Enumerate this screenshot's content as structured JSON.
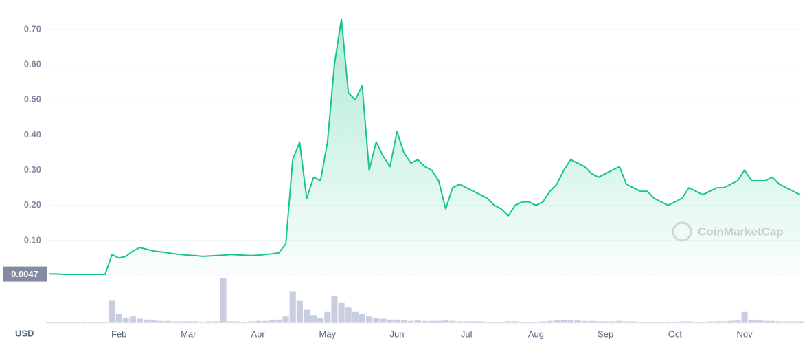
{
  "chart_data": {
    "type": "line",
    "watermark": "CoinMarketCap",
    "currency": "USD",
    "categories": [
      null,
      null,
      null,
      null,
      null,
      null,
      null,
      null,
      null,
      null,
      "Feb",
      null,
      null,
      null,
      null,
      null,
      null,
      null,
      null,
      null,
      "Mar",
      null,
      null,
      null,
      null,
      null,
      null,
      null,
      null,
      null,
      "Apr",
      null,
      null,
      null,
      null,
      null,
      null,
      null,
      null,
      null,
      "May",
      null,
      null,
      null,
      null,
      null,
      null,
      null,
      null,
      null,
      "Jun",
      null,
      null,
      null,
      null,
      null,
      null,
      null,
      null,
      null,
      "Jul",
      null,
      null,
      null,
      null,
      null,
      null,
      null,
      null,
      null,
      "Aug",
      null,
      null,
      null,
      null,
      null,
      null,
      null,
      null,
      null,
      "Sep",
      null,
      null,
      null,
      null,
      null,
      null,
      null,
      null,
      null,
      "Oct",
      null,
      null,
      null,
      null,
      null,
      null,
      null,
      null,
      null,
      "Nov",
      null,
      null,
      null,
      null,
      null,
      null,
      null,
      null
    ],
    "values": [
      0.005,
      0.005,
      0.004,
      0.004,
      0.004,
      0.004,
      0.004,
      0.004,
      0.004,
      0.06,
      0.05,
      0.055,
      0.07,
      0.08,
      0.075,
      0.07,
      0.068,
      0.065,
      0.062,
      0.06,
      0.058,
      0.057,
      0.055,
      0.056,
      0.057,
      0.058,
      0.06,
      0.059,
      0.058,
      0.057,
      0.058,
      0.06,
      0.062,
      0.065,
      0.09,
      0.33,
      0.38,
      0.22,
      0.28,
      0.27,
      0.38,
      0.6,
      0.73,
      0.52,
      0.5,
      0.54,
      0.3,
      0.38,
      0.34,
      0.31,
      0.41,
      0.35,
      0.32,
      0.33,
      0.31,
      0.3,
      0.27,
      0.19,
      0.25,
      0.26,
      0.25,
      0.24,
      0.23,
      0.22,
      0.2,
      0.19,
      0.17,
      0.2,
      0.21,
      0.21,
      0.2,
      0.21,
      0.24,
      0.26,
      0.3,
      0.33,
      0.32,
      0.31,
      0.29,
      0.28,
      0.29,
      0.3,
      0.31,
      0.26,
      0.25,
      0.24,
      0.24,
      0.22,
      0.21,
      0.2,
      0.21,
      0.22,
      0.25,
      0.24,
      0.23,
      0.24,
      0.25,
      0.25,
      0.26,
      0.27,
      0.3,
      0.27,
      0.27,
      0.27,
      0.28,
      0.26,
      0.25,
      0.24,
      0.23
    ],
    "color": "#16c784",
    "ylim": [
      0,
      0.78
    ],
    "yticks": [
      {
        "value": 0.1,
        "label": "0.10"
      },
      {
        "value": 0.2,
        "label": "0.20"
      },
      {
        "value": 0.3,
        "label": "0.30"
      },
      {
        "value": 0.4,
        "label": "0.40"
      },
      {
        "value": 0.5,
        "label": "0.50"
      },
      {
        "value": 0.6,
        "label": "0.60"
      },
      {
        "value": 0.7,
        "label": "0.70"
      }
    ],
    "grid": true,
    "baseline": 0.0047,
    "volume": {
      "color": "#c9cde0",
      "ylim": [
        0,
        100
      ],
      "values": [
        3,
        3,
        2,
        2,
        2,
        2,
        2,
        2,
        3,
        50,
        20,
        12,
        15,
        10,
        8,
        6,
        5,
        5,
        4,
        4,
        4,
        4,
        3,
        4,
        4,
        100,
        4,
        4,
        3,
        4,
        5,
        5,
        6,
        8,
        15,
        70,
        50,
        30,
        18,
        12,
        25,
        60,
        45,
        35,
        25,
        20,
        15,
        12,
        10,
        8,
        8,
        6,
        5,
        6,
        5,
        5,
        5,
        6,
        5,
        4,
        4,
        4,
        4,
        3,
        3,
        3,
        4,
        4,
        3,
        3,
        3,
        4,
        5,
        6,
        7,
        6,
        6,
        5,
        5,
        4,
        4,
        4,
        5,
        4,
        4,
        3,
        3,
        3,
        3,
        3,
        3,
        4,
        4,
        3,
        3,
        4,
        4,
        4,
        5,
        6,
        25,
        8,
        6,
        5,
        5,
        4,
        4,
        4,
        4
      ]
    }
  }
}
